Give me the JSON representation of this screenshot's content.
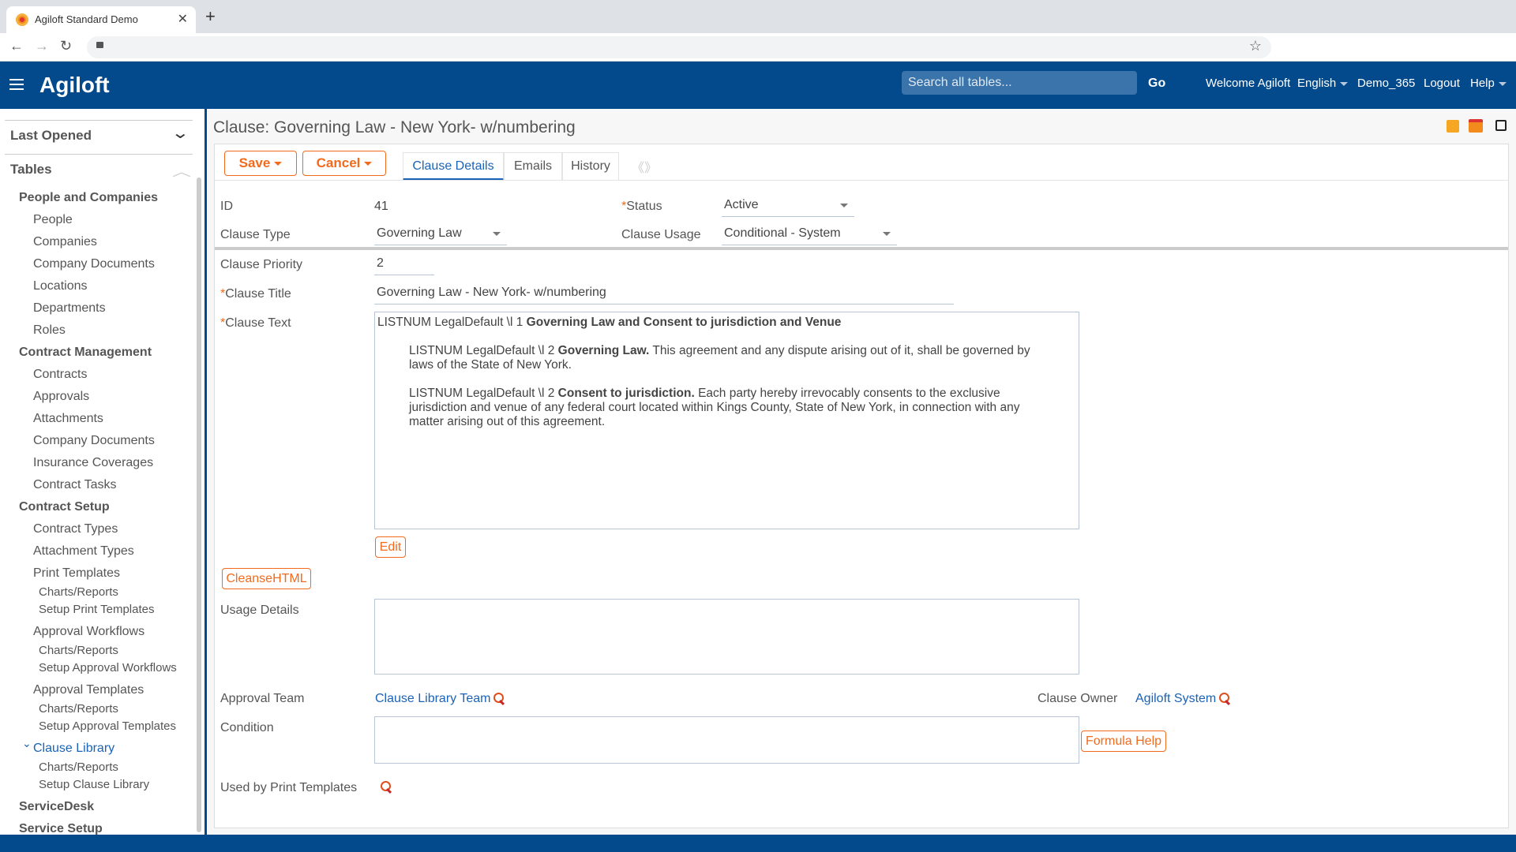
{
  "browser": {
    "tab_title": "Agiloft Standard Demo",
    "tab_icon": "agiloft-gear-icon"
  },
  "header": {
    "logo": "Agiloft",
    "search_placeholder": "Search all tables...",
    "go": "Go",
    "welcome": "Welcome Agiloft",
    "language": "English",
    "kb": "Demo_365",
    "logout": "Logout",
    "help": "Help"
  },
  "sidebar": {
    "last_opened": "Last Opened",
    "tables": "Tables",
    "items": [
      {
        "label": "People and Companies",
        "level": "h2"
      },
      {
        "label": "People",
        "level": "i"
      },
      {
        "label": "Companies",
        "level": "i"
      },
      {
        "label": "Company Documents",
        "level": "i"
      },
      {
        "label": "Locations",
        "level": "i"
      },
      {
        "label": "Departments",
        "level": "i"
      },
      {
        "label": "Roles",
        "level": "i"
      },
      {
        "label": "Contract Management",
        "level": "h2"
      },
      {
        "label": "Contracts",
        "level": "i"
      },
      {
        "label": "Approvals",
        "level": "i"
      },
      {
        "label": "Attachments",
        "level": "i"
      },
      {
        "label": "Company Documents",
        "level": "i"
      },
      {
        "label": "Insurance Coverages",
        "level": "i"
      },
      {
        "label": "Contract Tasks",
        "level": "i"
      },
      {
        "label": "Contract Setup",
        "level": "h2"
      },
      {
        "label": "Contract Types",
        "level": "i"
      },
      {
        "label": "Attachment Types",
        "level": "i"
      },
      {
        "label": "Print Templates",
        "level": "i"
      },
      {
        "label": "Charts/Reports",
        "level": "s"
      },
      {
        "label": "Setup Print Templates",
        "level": "s"
      },
      {
        "label": "Approval Workflows",
        "level": "i"
      },
      {
        "label": "Charts/Reports",
        "level": "s"
      },
      {
        "label": "Setup Approval Workflows",
        "level": "s"
      },
      {
        "label": "Approval Templates",
        "level": "i"
      },
      {
        "label": "Charts/Reports",
        "level": "s"
      },
      {
        "label": "Setup Approval Templates",
        "level": "s"
      },
      {
        "label": "Clause Library",
        "level": "i",
        "active": true
      },
      {
        "label": "Charts/Reports",
        "level": "s"
      },
      {
        "label": "Setup Clause Library",
        "level": "s"
      },
      {
        "label": "ServiceDesk",
        "level": "h2"
      },
      {
        "label": "Service Setup",
        "level": "h2"
      }
    ]
  },
  "record": {
    "title": "Clause: Governing Law - New York- w/numbering",
    "save": "Save",
    "cancel": "Cancel",
    "tabs": [
      "Clause Details",
      "Emails",
      "History"
    ],
    "active_tab": "Clause Details",
    "fields": {
      "id_label": "ID",
      "id": "41",
      "status_label": "Status",
      "status": "Active",
      "type_label": "Clause Type",
      "type": "Governing Law",
      "usage_label": "Clause Usage",
      "usage": "Conditional - System",
      "priority_label": "Clause Priority",
      "priority": "2",
      "title_label": "Clause Title",
      "title": "Governing Law - New York- w/numbering",
      "text_label": "Clause Text",
      "text": {
        "p1_pre": "LISTNUM LegalDefault \\l 1 ",
        "p1_bold": "Governing Law and Consent to jurisdiction and Venue",
        "p2_pre": "LISTNUM LegalDefault \\l 2 ",
        "p2_bold": "Governing Law.",
        "p2_rest": " This agreement and any dispute arising out of it, shall be governed by laws of the State of New York.",
        "p3_pre": "LISTNUM LegalDefault \\l 2 ",
        "p3_bold": "Consent to jurisdiction.",
        "p3_rest": " Each party hereby irrevocably consents to the exclusive jurisdiction and venue of any federal court located within Kings County, State of New York, in connection with any matter arising out of this agreement."
      },
      "edit": "Edit",
      "cleanse": "CleanseHTML",
      "usage_details_label": "Usage Details",
      "approval_team_label": "Approval Team",
      "approval_team": "Clause Library Team",
      "owner_label": "Clause Owner",
      "owner": "Agiloft System",
      "condition_label": "Condition",
      "formula_help": "Formula Help",
      "print_templates_label": "Used by Print Templates"
    }
  },
  "colors": {
    "brand": "#034a8c",
    "accent": "#f26a1b",
    "link": "#1a63b8"
  }
}
